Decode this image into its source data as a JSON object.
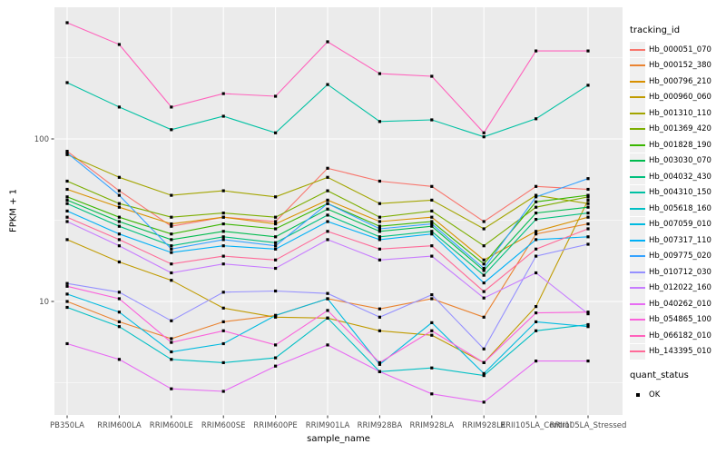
{
  "chart_data": {
    "type": "line",
    "xlabel": "sample_name",
    "ylabel": "FPKM + 1",
    "yscale": "log10",
    "ylim": [
      2.0,
      650
    ],
    "ytick_labels": [
      "100",
      "10"
    ],
    "ytick_values": [
      100,
      10
    ],
    "minor_gridlines": [
      3.162,
      31.623,
      316.228
    ],
    "grid": "on",
    "panel_bg": "#EBEBEB",
    "grid_color": "#FFFFFF",
    "tick_label_color": "#4D4D4D",
    "point_shape": "filled-square",
    "point_color": "#000000",
    "categories": [
      "PB350LA",
      "RRIM600LA",
      "RRIM600LE",
      "RRIM600SE",
      "RRIM600PE",
      "RRIM901LA",
      "RRIM928BA",
      "RRIM928LA",
      "RRIM928LE",
      "RRII105LA_Control",
      "RRII105LA_Stressed"
    ],
    "legend": {
      "title": "tracking_id",
      "position": "right"
    },
    "legend2": {
      "title": "quant_status",
      "items": [
        {
          "label": "OK",
          "marker": "black-square"
        }
      ]
    },
    "series": [
      {
        "name": "Hb_000051_070",
        "color": "#F8766D",
        "values": [
          84,
          48,
          29,
          33,
          31,
          66,
          55,
          51,
          31,
          51,
          49
        ]
      },
      {
        "name": "Hb_000152_380",
        "color": "#EA8331",
        "values": [
          10,
          7.5,
          5.9,
          7.5,
          8.2,
          10.4,
          9,
          10.4,
          8,
          26,
          30
        ]
      },
      {
        "name": "Hb_000796_210",
        "color": "#D89000",
        "values": [
          49,
          38,
          30,
          33,
          30,
          42,
          31,
          33,
          18,
          27,
          33
        ]
      },
      {
        "name": "Hb_000960_060",
        "color": "#C09B00",
        "values": [
          24,
          17.5,
          13.5,
          9.1,
          8,
          7.9,
          6.6,
          6.2,
          4.2,
          9.3,
          42
        ]
      },
      {
        "name": "Hb_001310_110",
        "color": "#A3A500",
        "values": [
          80,
          58,
          45,
          48,
          44,
          58,
          40,
          42,
          28,
          45,
          40
        ]
      },
      {
        "name": "Hb_001369_420",
        "color": "#7CAE00",
        "values": [
          55,
          40,
          33,
          35,
          33,
          48,
          33,
          36,
          22,
          38,
          44
        ]
      },
      {
        "name": "Hb_001828_190",
        "color": "#39B600",
        "values": [
          44,
          33,
          26,
          30,
          28,
          40,
          29,
          31,
          17,
          41,
          45
        ]
      },
      {
        "name": "Hb_003030_070",
        "color": "#00BB4E",
        "values": [
          42,
          31,
          24,
          27,
          25,
          37,
          27,
          29,
          15.5,
          35,
          38
        ]
      },
      {
        "name": "Hb_004032_430",
        "color": "#00BF7D",
        "values": [
          40,
          29,
          22,
          25,
          23,
          34,
          25,
          27,
          14.5,
          32,
          35
        ]
      },
      {
        "name": "Hb_004310_150",
        "color": "#00C1A3",
        "values": [
          222,
          157,
          114,
          138,
          109,
          216,
          128,
          131,
          103,
          133,
          214
        ]
      },
      {
        "name": "Hb_005618_160",
        "color": "#00BFC4",
        "values": [
          9.2,
          7,
          4.4,
          4.2,
          4.5,
          7.9,
          3.7,
          3.9,
          3.5,
          6.6,
          7.2
        ]
      },
      {
        "name": "Hb_007059_010",
        "color": "#00BAE0",
        "values": [
          11.1,
          8.6,
          4.9,
          5.5,
          8.2,
          10.4,
          4.1,
          7.4,
          3.6,
          7.5,
          7
        ]
      },
      {
        "name": "Hb_007317_110",
        "color": "#00B0F6",
        "values": [
          36,
          26,
          20,
          22,
          21,
          31,
          24,
          26,
          13,
          24,
          25
        ]
      },
      {
        "name": "Hb_009775_020",
        "color": "#35A2FF",
        "values": [
          82,
          45,
          21,
          24,
          22,
          40,
          28,
          30,
          16,
          44,
          57
        ]
      },
      {
        "name": "Hb_010712_030",
        "color": "#9590FF",
        "values": [
          12.9,
          11.4,
          7.6,
          11.4,
          11.6,
          11.2,
          8,
          11,
          5.1,
          19,
          22.5
        ]
      },
      {
        "name": "Hb_012022_160",
        "color": "#C77CFF",
        "values": [
          31,
          22,
          15,
          17,
          16,
          24,
          18,
          19,
          10.5,
          15,
          8.4
        ]
      },
      {
        "name": "Hb_040262_010",
        "color": "#E76BF3",
        "values": [
          5.5,
          4.4,
          2.9,
          2.8,
          4,
          5.4,
          3.7,
          2.7,
          2.4,
          4.3,
          4.3
        ]
      },
      {
        "name": "Hb_054865_100",
        "color": "#FA62DB",
        "values": [
          12.4,
          10.4,
          5.6,
          6.6,
          5.4,
          8.8,
          4.2,
          6.6,
          4.2,
          8.5,
          8.6
        ]
      },
      {
        "name": "Hb_066182_010",
        "color": "#FF62BC",
        "values": [
          519,
          381,
          157,
          190,
          183,
          396,
          252,
          243,
          109,
          348,
          348
        ]
      },
      {
        "name": "Hb_143395_010",
        "color": "#FF6A98",
        "values": [
          33,
          24,
          17,
          19,
          18,
          27,
          21,
          22,
          11.5,
          21,
          28
        ]
      }
    ]
  }
}
